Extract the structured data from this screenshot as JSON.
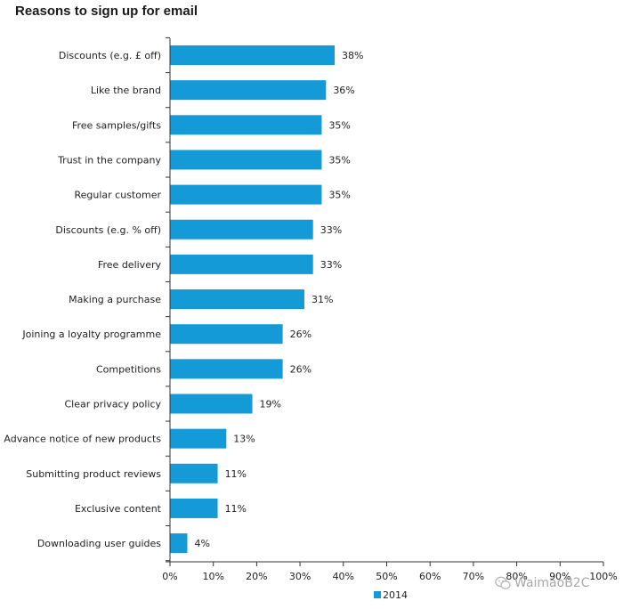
{
  "chart_data": {
    "type": "bar",
    "orientation": "horizontal",
    "title": "Reasons to sign up for email",
    "categories": [
      "Discounts (e.g. £ off)",
      "Like the brand",
      "Free samples/gifts",
      "Trust in the company",
      "Regular customer",
      "Discounts (e.g. % off)",
      "Free delivery",
      "Making a purchase",
      "Joining a loyalty programme",
      "Competitions",
      "Clear privacy policy",
      "Advance notice of new products",
      "Submitting product reviews",
      "Exclusive content",
      "Downloading user guides"
    ],
    "series": [
      {
        "name": "2014",
        "values": [
          38,
          36,
          35,
          35,
          35,
          33,
          33,
          31,
          26,
          26,
          19,
          13,
          11,
          11,
          4
        ],
        "data_labels": [
          "38%",
          "36%",
          "35%",
          "35%",
          "35%",
          "33%",
          "33%",
          "31%",
          "26%",
          "26%",
          "19%",
          "13%",
          "11%",
          "11%",
          "4%"
        ]
      }
    ],
    "x_ticks": [
      "0%",
      "10%",
      "20%",
      "30%",
      "40%",
      "50%",
      "60%",
      "70%",
      "80%",
      "90%",
      "100%"
    ],
    "xlim": [
      0,
      100
    ],
    "grid": false,
    "legend_position": "bottom-center",
    "colors": {
      "bar": "#149ad6",
      "axis": "#333333"
    }
  },
  "watermark": {
    "text": "WaimaoB2C",
    "icon": "wechat-icon"
  }
}
